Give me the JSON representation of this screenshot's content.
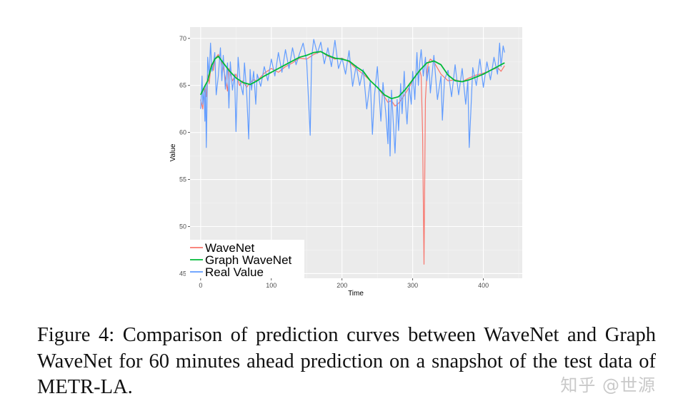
{
  "chart_data": {
    "type": "line",
    "title": "",
    "xlabel": "Time",
    "ylabel": "Value",
    "xlim": [
      -15,
      455
    ],
    "ylim": [
      44.5,
      71.2
    ],
    "x_ticks": [
      0,
      100,
      200,
      300,
      400
    ],
    "y_ticks": [
      45,
      50,
      55,
      60,
      65,
      70
    ],
    "x_tick_labels": [
      "0",
      "100",
      "200",
      "300",
      "400"
    ],
    "y_tick_labels": [
      "45",
      "50",
      "55",
      "60",
      "65",
      "70"
    ],
    "grid": true,
    "legend_position": "bottom-left",
    "series": [
      {
        "name": "WaveNet",
        "color": "#f8766d",
        "x": [
          0,
          3,
          5,
          8,
          10,
          12,
          15,
          18,
          20,
          25,
          30,
          35,
          38,
          40,
          45,
          50,
          55,
          60,
          65,
          70,
          75,
          80,
          90,
          100,
          110,
          120,
          130,
          140,
          150,
          160,
          170,
          180,
          190,
          200,
          210,
          220,
          230,
          240,
          250,
          260,
          265,
          270,
          275,
          280,
          285,
          290,
          295,
          300,
          305,
          310,
          312,
          314,
          316,
          318,
          320,
          322,
          325,
          330,
          340,
          350,
          360,
          370,
          380,
          390,
          400,
          410,
          420,
          425,
          430
        ],
        "values": [
          63.5,
          62.5,
          64.8,
          63.8,
          66.2,
          65.2,
          67.3,
          66.6,
          67.8,
          68.3,
          67.5,
          65.8,
          64.4,
          66.8,
          65.5,
          66.2,
          65.0,
          65.5,
          64.8,
          65.3,
          65.6,
          65.5,
          66.3,
          66.8,
          66.4,
          67.0,
          67.4,
          67.9,
          67.8,
          68.3,
          68.6,
          68.1,
          67.8,
          67.9,
          67.5,
          66.8,
          66.2,
          65.5,
          64.8,
          63.8,
          63.2,
          63.4,
          62.8,
          63.1,
          63.6,
          64.2,
          64.8,
          65.5,
          66.2,
          66.6,
          66.0,
          60.0,
          46.0,
          63.5,
          66.2,
          67.4,
          67.8,
          67.5,
          66.2,
          65.5,
          65.6,
          65.4,
          65.8,
          66.1,
          66.3,
          66.6,
          66.9,
          66.5,
          67.1
        ]
      },
      {
        "name": "Graph WaveNet",
        "color": "#00ba38",
        "x": [
          0,
          5,
          10,
          15,
          20,
          25,
          30,
          40,
          50,
          60,
          70,
          80,
          90,
          100,
          110,
          120,
          130,
          140,
          150,
          160,
          170,
          180,
          190,
          200,
          210,
          220,
          230,
          240,
          250,
          260,
          270,
          280,
          290,
          300,
          310,
          320,
          330,
          340,
          350,
          360,
          370,
          380,
          390,
          400,
          410,
          420,
          425,
          430
        ],
        "values": [
          64.0,
          64.8,
          65.5,
          67.0,
          67.8,
          68.1,
          67.6,
          66.6,
          65.8,
          65.3,
          65.1,
          65.5,
          66.0,
          66.4,
          66.8,
          67.2,
          67.6,
          68.0,
          68.2,
          68.5,
          68.6,
          68.2,
          67.9,
          67.8,
          67.6,
          67.0,
          66.5,
          65.5,
          64.8,
          64.0,
          63.6,
          63.8,
          64.6,
          65.6,
          66.6,
          67.4,
          67.6,
          67.2,
          66.1,
          65.5,
          65.4,
          65.6,
          65.9,
          66.2,
          66.6,
          67.0,
          67.2,
          67.4
        ]
      },
      {
        "name": "Real Value",
        "color": "#619cff",
        "x": [
          0,
          2,
          3,
          5,
          6,
          7,
          8,
          9,
          10,
          12,
          14,
          16,
          18,
          20,
          22,
          25,
          28,
          30,
          32,
          35,
          38,
          40,
          42,
          45,
          48,
          50,
          53,
          56,
          60,
          62,
          65,
          68,
          70,
          72,
          75,
          78,
          80,
          85,
          90,
          95,
          100,
          105,
          110,
          115,
          120,
          125,
          130,
          135,
          140,
          145,
          150,
          155,
          157,
          160,
          165,
          170,
          175,
          180,
          185,
          190,
          195,
          200,
          205,
          210,
          215,
          220,
          225,
          230,
          235,
          240,
          243,
          246,
          250,
          255,
          258,
          262,
          265,
          266,
          268,
          270,
          272,
          275,
          278,
          280,
          283,
          285,
          288,
          290,
          292,
          295,
          298,
          300,
          303,
          306,
          308,
          310,
          312,
          315,
          318,
          320,
          323,
          325,
          330,
          335,
          340,
          342,
          345,
          350,
          355,
          360,
          365,
          370,
          375,
          378,
          380,
          385,
          390,
          395,
          400,
          405,
          410,
          415,
          420,
          423,
          425,
          428,
          430
        ],
        "values": [
          62.5,
          66.0,
          63.0,
          64.5,
          61.2,
          65.0,
          58.4,
          63.0,
          68.0,
          66.0,
          69.5,
          66.5,
          67.2,
          68.5,
          64.0,
          66.0,
          69.0,
          65.5,
          68.2,
          64.6,
          67.4,
          62.6,
          67.5,
          64.5,
          66.2,
          60.1,
          68.0,
          65.3,
          64.0,
          67.4,
          64.4,
          59.3,
          66.7,
          64.5,
          66.5,
          63.0,
          66.2,
          64.9,
          67.0,
          65.5,
          67.8,
          66.0,
          68.5,
          66.4,
          68.8,
          66.8,
          69.0,
          67.2,
          68.4,
          69.5,
          67.6,
          59.7,
          68.0,
          69.9,
          68.4,
          69.6,
          67.3,
          69.0,
          67.0,
          69.8,
          66.8,
          67.9,
          66.2,
          68.7,
          64.9,
          67.1,
          65.0,
          66.7,
          62.5,
          65.5,
          59.8,
          64.0,
          67.0,
          61.2,
          65.3,
          62.0,
          58.8,
          63.6,
          57.5,
          64.5,
          61.8,
          57.8,
          63.5,
          60.2,
          65.2,
          62.0,
          66.5,
          63.0,
          60.9,
          65.0,
          63.0,
          66.5,
          63.5,
          68.5,
          65.0,
          67.4,
          68.8,
          66.0,
          68.0,
          65.5,
          67.0,
          64.2,
          68.2,
          63.5,
          66.0,
          61.3,
          65.6,
          66.6,
          63.8,
          67.2,
          64.0,
          66.8,
          63.0,
          65.5,
          58.4,
          66.9,
          65.0,
          67.8,
          64.8,
          67.5,
          65.6,
          68.0,
          66.2,
          69.5,
          67.0,
          69.2,
          68.5
        ]
      }
    ]
  },
  "caption": {
    "text": "Figure 4:  Comparison of prediction curves between WaveNet and Graph WaveNet for 60 minutes ahead prediction on a snapshot of the test data of METR-LA."
  },
  "watermark": {
    "text": "知乎 @世源"
  }
}
